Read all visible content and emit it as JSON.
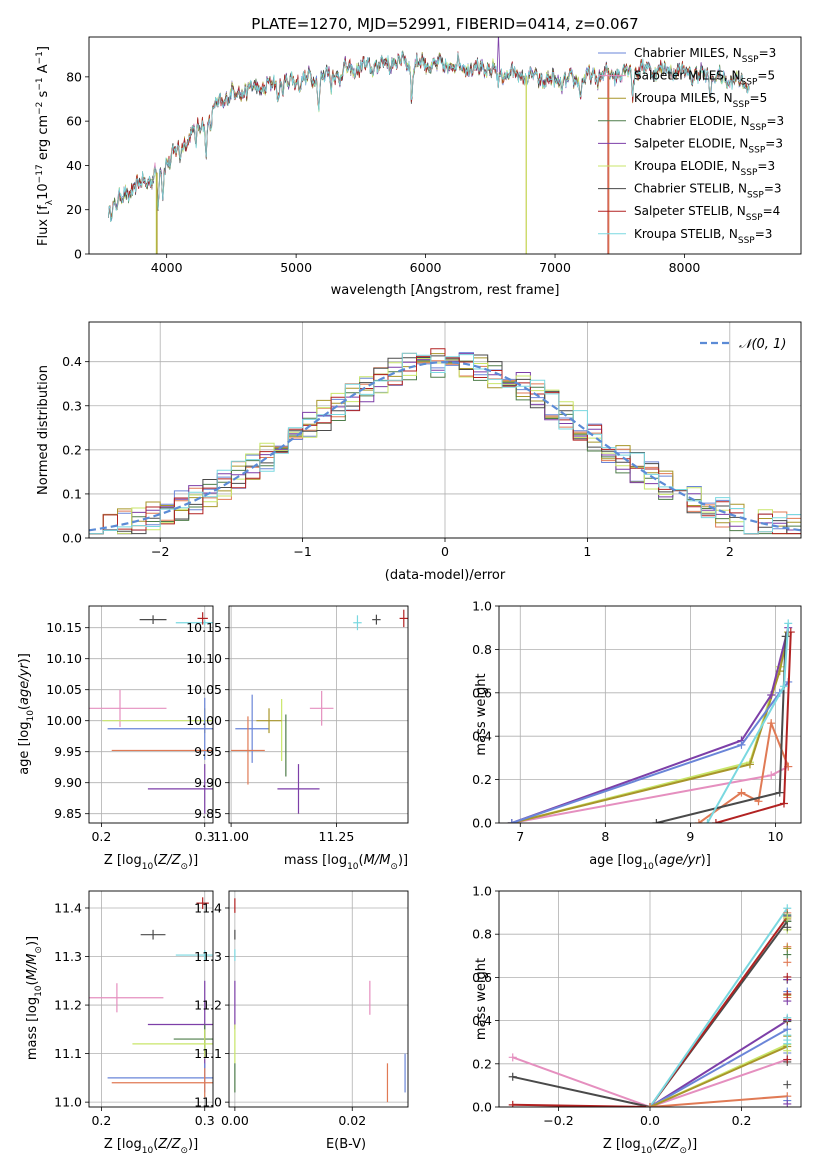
{
  "title": "PLATE=1270, MJD=52991, FIBERID=0414, z=0.067",
  "colors": [
    "#6a85d8",
    "#e07a55",
    "#a8962a",
    "#4e7d4a",
    "#7d3fa8",
    "#c9e66a",
    "#4a4a4a",
    "#b22222",
    "#7ad8e0"
  ],
  "colors_named": {
    "blue": "#6a85d8",
    "orange": "#e07a55",
    "gold": "#a8962a",
    "green": "#4e7d4a",
    "purple": "#7d3fa8",
    "lime": "#c9e66a",
    "gray": "#4a4a4a",
    "red": "#b22222",
    "cyan": "#7ad8e0",
    "pink": "#e58fbf"
  },
  "chart_data": [
    {
      "id": "spectrum",
      "type": "line",
      "xlabel": "wavelength [Angstrom, rest frame]",
      "ylabel_parts": [
        "Flux [f",
        "λ",
        "10",
        "−17",
        " erg cm",
        "−2",
        " s",
        "−1",
        " A",
        "−1",
        "]"
      ],
      "xlim": [
        3400,
        8900
      ],
      "ylim": [
        0,
        98
      ],
      "xticks": [
        4000,
        5000,
        6000,
        7000,
        8000
      ],
      "yticks": [
        0,
        20,
        40,
        60,
        80
      ],
      "continuum_knots": [
        [
          3550,
          20
        ],
        [
          3650,
          25
        ],
        [
          3750,
          30
        ],
        [
          3850,
          33
        ],
        [
          3950,
          38
        ],
        [
          4000,
          42
        ],
        [
          4100,
          48
        ],
        [
          4200,
          55
        ],
        [
          4300,
          60
        ],
        [
          4400,
          68
        ],
        [
          4500,
          72
        ],
        [
          4600,
          74
        ],
        [
          4700,
          75
        ],
        [
          4800,
          76
        ],
        [
          4900,
          77
        ],
        [
          5000,
          78
        ],
        [
          5100,
          79
        ],
        [
          5200,
          80
        ],
        [
          5300,
          82
        ],
        [
          5400,
          83
        ],
        [
          5500,
          84
        ],
        [
          5600,
          85
        ],
        [
          5700,
          86
        ],
        [
          5800,
          87
        ],
        [
          5900,
          86
        ],
        [
          6000,
          86
        ],
        [
          6100,
          85
        ],
        [
          6200,
          85
        ],
        [
          6300,
          85
        ],
        [
          6400,
          84
        ],
        [
          6500,
          83
        ],
        [
          6600,
          82
        ],
        [
          6700,
          81
        ],
        [
          6800,
          80
        ],
        [
          6900,
          79
        ],
        [
          7000,
          78
        ],
        [
          7100,
          78
        ],
        [
          7200,
          79
        ],
        [
          7300,
          80
        ],
        [
          7400,
          81
        ],
        [
          7500,
          82
        ],
        [
          7600,
          83
        ],
        [
          7700,
          84
        ],
        [
          7800,
          83
        ],
        [
          7900,
          83
        ],
        [
          8000,
          82
        ],
        [
          8100,
          81
        ],
        [
          8200,
          80
        ],
        [
          8300,
          79
        ],
        [
          8400,
          78
        ],
        [
          8500,
          76
        ]
      ],
      "absorption_lines": [
        [
          3934,
          15
        ],
        [
          3969,
          13
        ],
        [
          4102,
          6
        ],
        [
          4227,
          8
        ],
        [
          4304,
          14
        ],
        [
          4340,
          8
        ],
        [
          4861,
          6
        ],
        [
          5175,
          12
        ],
        [
          5270,
          6
        ],
        [
          5335,
          5
        ],
        [
          5893,
          15
        ],
        [
          6563,
          7
        ],
        [
          7200,
          6
        ],
        [
          7600,
          10
        ],
        [
          8200,
          6
        ]
      ],
      "legend": [
        {
          "name": "Chabrier MILES, N",
          "sub": "SSP",
          "suffix": "=3"
        },
        {
          "name": "Salpeter MILES, N",
          "sub": "SSP",
          "suffix": "=5"
        },
        {
          "name": "Kroupa MILES, N",
          "sub": "SSP",
          "suffix": "=5"
        },
        {
          "name": "Chabrier ELODIE, N",
          "sub": "SSP",
          "suffix": "=3"
        },
        {
          "name": "Salpeter ELODIE, N",
          "sub": "SSP",
          "suffix": "=3"
        },
        {
          "name": "Kroupa ELODIE, N",
          "sub": "SSP",
          "suffix": "=3"
        },
        {
          "name": "Chabrier STELIB, N",
          "sub": "SSP",
          "suffix": "=3"
        },
        {
          "name": "Salpeter STELIB, N",
          "sub": "SSP",
          "suffix": "=4"
        },
        {
          "name": "Kroupa STELIB, N",
          "sub": "SSP",
          "suffix": "=3"
        }
      ],
      "legend_colors": [
        "#6a85d8",
        "#e58fbf",
        "#a8962a",
        "#4e7d4a",
        "#7d3fa8",
        "#c9e66a",
        "#4a4a4a",
        "#b22222",
        "#7ad8e0"
      ],
      "legend_placement": "upper-right",
      "grid": false
    },
    {
      "id": "residuals",
      "type": "step-histogram",
      "xlabel": "(data-model)/error",
      "ylabel": "Normed distribution",
      "xlim": [
        -2.5,
        2.5
      ],
      "ylim": [
        0,
        0.49
      ],
      "xticks": [
        -2,
        -1,
        0,
        1,
        2
      ],
      "yticks": [
        0.0,
        0.1,
        0.2,
        0.3,
        0.4
      ],
      "bin_width": 0.1,
      "gaussian_legend": "𝒩(0, 1)",
      "legend_placement": "upper-right",
      "grid": true
    },
    {
      "id": "age-vs-Z",
      "type": "errorbar",
      "xlabel": "Z [log10(Z/Z☉)]",
      "ylabel": "age  [log10(age/yr)]",
      "xlim": [
        0.188,
        0.308
      ],
      "ylim": [
        9.835,
        10.185
      ],
      "xticks": [
        0.2,
        0.3
      ],
      "yticks": [
        9.85,
        9.9,
        9.95,
        10.0,
        10.05,
        10.1,
        10.15
      ],
      "points": [
        {
          "c": "#4a4a4a",
          "x": 0.25,
          "xerr": 0.013,
          "y": 10.163,
          "yerr": 0.007
        },
        {
          "c": "#7ad8e0",
          "x": 0.3,
          "xerr": 0.028,
          "y": 10.158,
          "yerr": 0.004
        },
        {
          "c": "#b22222",
          "x": 0.298,
          "xerr": 0.005,
          "y": 10.165,
          "yerr": 0.01
        },
        {
          "c": "#e58fbf",
          "x": 0.218,
          "xerr": 0.045,
          "y": 10.02,
          "yerr": 0.03
        },
        {
          "c": "#c9e66a",
          "x": 0.268,
          "xerr": 0.067,
          "y": 10.0,
          "yerr": 0.0
        },
        {
          "c": "#a8962a",
          "x": 0.3,
          "xerr": 0.0,
          "y": 10.0,
          "yerr": 0.02
        },
        {
          "c": "#6a85d8",
          "x": 0.3,
          "xerr": 0.094,
          "y": 9.987,
          "yerr": 0.05
        },
        {
          "c": "#e07a55",
          "x": 0.3,
          "xerr": 0.09,
          "y": 9.952,
          "yerr": 0.0
        },
        {
          "c": "#7d3fa8",
          "x": 0.3,
          "xerr": 0.055,
          "y": 9.89,
          "yerr": 0.04
        }
      ],
      "grid": true
    },
    {
      "id": "age-vs-mass",
      "type": "errorbar",
      "xlabel": "mass [log10(M/M☉)]",
      "ylabel": "",
      "xlim": [
        10.995,
        11.42
      ],
      "ylim": [
        9.835,
        10.185
      ],
      "xticks": [
        11.0,
        11.25
      ],
      "yticks": [
        9.85,
        9.9,
        9.95,
        10.0,
        10.05,
        10.1,
        10.15
      ],
      "points": [
        {
          "c": "#7ad8e0",
          "x": 11.3,
          "xerr": 0.01,
          "y": 10.158,
          "yerr": 0.012
        },
        {
          "c": "#4a4a4a",
          "x": 11.345,
          "xerr": 0.01,
          "y": 10.163,
          "yerr": 0.008
        },
        {
          "c": "#b22222",
          "x": 11.41,
          "xerr": 0.01,
          "y": 10.165,
          "yerr": 0.014
        },
        {
          "c": "#e58fbf",
          "x": 11.215,
          "xerr": 0.028,
          "y": 10.02,
          "yerr": 0.028
        },
        {
          "c": "#c9e66a",
          "x": 11.12,
          "xerr": 0.0,
          "y": 9.985,
          "yerr": 0.05
        },
        {
          "c": "#4e7d4a",
          "x": 11.13,
          "xerr": 0.0,
          "y": 9.96,
          "yerr": 0.05
        },
        {
          "c": "#6a85d8",
          "x": 11.05,
          "xerr": 0.04,
          "y": 9.987,
          "yerr": 0.055
        },
        {
          "c": "#a8962a",
          "x": 11.09,
          "xerr": 0.03,
          "y": 10.0,
          "yerr": 0.02
        },
        {
          "c": "#e07a55",
          "x": 11.04,
          "xerr": 0.04,
          "y": 9.952,
          "yerr": 0.055
        },
        {
          "c": "#7d3fa8",
          "x": 11.16,
          "xerr": 0.05,
          "y": 9.89,
          "yerr": 0.04
        }
      ],
      "grid": true
    },
    {
      "id": "mass-vs-Z",
      "type": "errorbar",
      "xlabel": "Z [log10(Z/Z☉)]",
      "ylabel": "mass [log10(M/M☉)]",
      "xlim": [
        0.188,
        0.308
      ],
      "ylim": [
        10.99,
        11.435
      ],
      "xticks": [
        0.2,
        0.3
      ],
      "yticks": [
        11.0,
        11.1,
        11.2,
        11.3,
        11.4
      ],
      "points": [
        {
          "c": "#b22222",
          "x": 0.298,
          "xerr": 0.006,
          "y": 11.41,
          "yerr": 0.012
        },
        {
          "c": "#4a4a4a",
          "x": 0.25,
          "xerr": 0.012,
          "y": 11.345,
          "yerr": 0.01
        },
        {
          "c": "#7ad8e0",
          "x": 0.3,
          "xerr": 0.028,
          "y": 11.303,
          "yerr": 0.01
        },
        {
          "c": "#e58fbf",
          "x": 0.215,
          "xerr": 0.045,
          "y": 11.215,
          "yerr": 0.03
        },
        {
          "c": "#7d3fa8",
          "x": 0.3,
          "xerr": 0.055,
          "y": 11.16,
          "yerr": 0.09
        },
        {
          "c": "#4e7d4a",
          "x": 0.3,
          "xerr": 0.03,
          "y": 11.13,
          "yerr": 0.03
        },
        {
          "c": "#c9e66a",
          "x": 0.3,
          "xerr": 0.07,
          "y": 11.12,
          "yerr": 0.03
        },
        {
          "c": "#6a85d8",
          "x": 0.3,
          "xerr": 0.094,
          "y": 11.05,
          "yerr": 0.03
        },
        {
          "c": "#e07a55",
          "x": 0.3,
          "xerr": 0.09,
          "y": 11.04,
          "yerr": 0.03
        }
      ],
      "grid": true
    },
    {
      "id": "mass-vs-EBV",
      "type": "errorbar",
      "xlabel": "E(B-V)",
      "ylabel": "",
      "xlim": [
        -0.001,
        0.0295
      ],
      "ylim": [
        10.99,
        11.435
      ],
      "xticks": [
        0.0,
        0.02
      ],
      "yticks": [
        11.0,
        11.1,
        11.2,
        11.3,
        11.4
      ],
      "points": [
        {
          "c": "#b22222",
          "x": 0.0,
          "xerr": 0.0,
          "y": 11.405,
          "yerr": 0.015
        },
        {
          "c": "#4a4a4a",
          "x": 0.0,
          "xerr": 0.0,
          "y": 11.345,
          "yerr": 0.01
        },
        {
          "c": "#7ad8e0",
          "x": 0.0,
          "xerr": 0.0,
          "y": 11.303,
          "yerr": 0.012
        },
        {
          "c": "#7d3fa8",
          "x": 0.0,
          "xerr": 0.0,
          "y": 11.2,
          "yerr": 0.05
        },
        {
          "c": "#e58fbf",
          "x": 0.023,
          "xerr": 0.0,
          "y": 11.215,
          "yerr": 0.035
        },
        {
          "c": "#c9e66a",
          "x": 0.0,
          "xerr": 0.0,
          "y": 11.12,
          "yerr": 0.04
        },
        {
          "c": "#4e7d4a",
          "x": 0.0,
          "xerr": 0.0,
          "y": 11.05,
          "yerr": 0.03
        },
        {
          "c": "#e07a55",
          "x": 0.026,
          "xerr": 0.0,
          "y": 11.04,
          "yerr": 0.04
        },
        {
          "c": "#6a85d8",
          "x": 0.029,
          "xerr": 0.0,
          "y": 11.06,
          "yerr": 0.04
        }
      ],
      "grid": true
    },
    {
      "id": "massweight-vs-age",
      "type": "line",
      "xlabel": "age  [log10(age/yr)]",
      "ylabel": "mass weight",
      "xlim": [
        6.75,
        10.3
      ],
      "ylim": [
        0,
        1.0
      ],
      "xticks": [
        7,
        8,
        9,
        10
      ],
      "yticks": [
        0.0,
        0.2,
        0.4,
        0.6,
        0.8,
        1.0
      ],
      "series": [
        {
          "c": "#e58fbf",
          "pts": [
            [
              6.9,
              0.0
            ],
            [
              9.95,
              0.22
            ],
            [
              10.15,
              0.26
            ]
          ]
        },
        {
          "c": "#e07a55",
          "pts": [
            [
              9.1,
              0.0
            ],
            [
              9.6,
              0.14
            ],
            [
              9.8,
              0.1
            ],
            [
              9.95,
              0.46
            ],
            [
              10.15,
              0.26
            ]
          ]
        },
        {
          "c": "#c9e66a",
          "pts": [
            [
              6.9,
              0.0
            ],
            [
              9.7,
              0.28
            ],
            [
              10.05,
              0.72
            ],
            [
              10.15,
              0.88
            ]
          ]
        },
        {
          "c": "#a8962a",
          "pts": [
            [
              6.9,
              0.0
            ],
            [
              9.7,
              0.27
            ],
            [
              10.05,
              0.7
            ],
            [
              10.15,
              0.88
            ]
          ]
        },
        {
          "c": "#7d3fa8",
          "pts": [
            [
              6.9,
              0.0
            ],
            [
              9.6,
              0.38
            ],
            [
              9.95,
              0.59
            ],
            [
              10.15,
              0.9
            ]
          ]
        },
        {
          "c": "#6a85d8",
          "pts": [
            [
              6.9,
              0.0
            ],
            [
              9.6,
              0.36
            ],
            [
              10.05,
              0.6
            ],
            [
              10.15,
              0.65
            ]
          ]
        },
        {
          "c": "#4a4a4a",
          "pts": [
            [
              8.6,
              0.0
            ],
            [
              10.05,
              0.14
            ],
            [
              10.12,
              0.86
            ]
          ]
        },
        {
          "c": "#b22222",
          "pts": [
            [
              9.3,
              0.0
            ],
            [
              10.1,
              0.09
            ],
            [
              10.18,
              0.88
            ]
          ]
        },
        {
          "c": "#7ad8e0",
          "pts": [
            [
              9.2,
              0.0
            ],
            [
              10.1,
              0.63
            ],
            [
              10.15,
              0.92
            ]
          ]
        }
      ],
      "grid": true
    },
    {
      "id": "massweight-vs-Z",
      "type": "line",
      "xlabel": "Z [log10(Z/Z☉)]",
      "ylabel": "mass weight",
      "xlim": [
        -0.33,
        0.33
      ],
      "ylim": [
        0,
        1.0
      ],
      "xticks": [
        -0.2,
        0.0,
        0.2
      ],
      "yticks": [
        0.0,
        0.2,
        0.4,
        0.6,
        0.8,
        1.0
      ],
      "series": [
        {
          "c": "#e58fbf",
          "pts": [
            [
              -0.3,
              0.23
            ],
            [
              0.0,
              0.0
            ],
            [
              0.3,
              0.22
            ]
          ]
        },
        {
          "c": "#4a4a4a",
          "pts": [
            [
              -0.3,
              0.14
            ],
            [
              0.0,
              0.0
            ],
            [
              0.3,
              0.86
            ]
          ]
        },
        {
          "c": "#b22222",
          "pts": [
            [
              -0.3,
              0.01
            ],
            [
              0.0,
              0.0
            ],
            [
              0.3,
              0.88
            ]
          ]
        },
        {
          "c": "#7ad8e0",
          "pts": [
            [
              0.0,
              0.0
            ],
            [
              0.3,
              0.92
            ]
          ]
        },
        {
          "c": "#7d3fa8",
          "pts": [
            [
              0.0,
              0.0
            ],
            [
              0.3,
              0.4
            ]
          ]
        },
        {
          "c": "#6a85d8",
          "pts": [
            [
              0.0,
              0.0
            ],
            [
              0.3,
              0.36
            ]
          ]
        },
        {
          "c": "#c9e66a",
          "pts": [
            [
              0.0,
              0.0
            ],
            [
              0.3,
              0.29
            ]
          ]
        },
        {
          "c": "#a8962a",
          "pts": [
            [
              0.0,
              0.0
            ],
            [
              0.3,
              0.28
            ]
          ]
        },
        {
          "c": "#e07a55",
          "pts": [
            [
              0.0,
              0.0
            ],
            [
              0.3,
              0.05
            ]
          ]
        }
      ],
      "vertical_ticks_at_x": 0.3,
      "grid": true
    }
  ]
}
